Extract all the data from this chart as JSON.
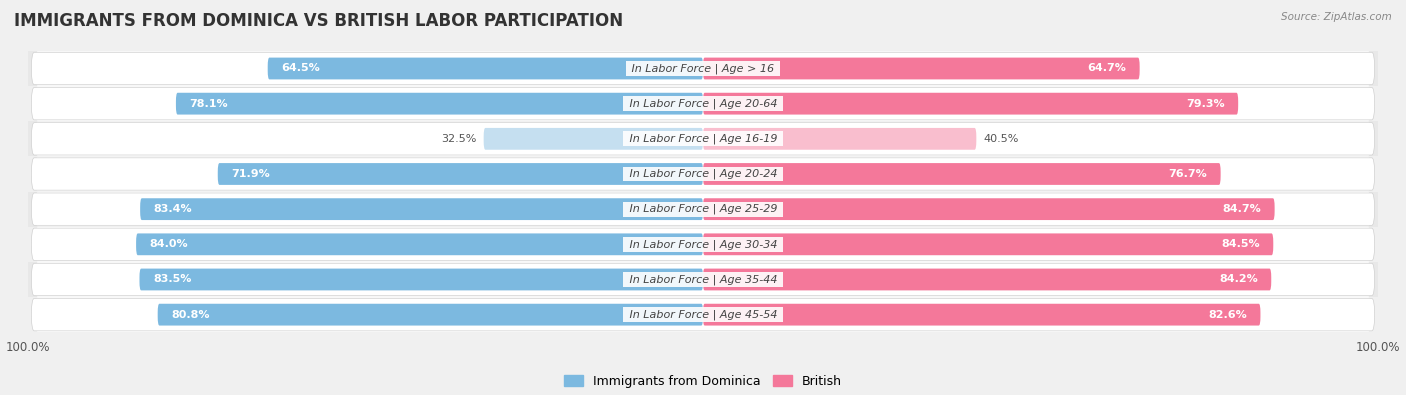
{
  "title": "IMMIGRANTS FROM DOMINICA VS BRITISH LABOR PARTICIPATION",
  "source": "Source: ZipAtlas.com",
  "categories": [
    "In Labor Force | Age > 16",
    "In Labor Force | Age 20-64",
    "In Labor Force | Age 16-19",
    "In Labor Force | Age 20-24",
    "In Labor Force | Age 25-29",
    "In Labor Force | Age 30-34",
    "In Labor Force | Age 35-44",
    "In Labor Force | Age 45-54"
  ],
  "dominica_values": [
    64.5,
    78.1,
    32.5,
    71.9,
    83.4,
    84.0,
    83.5,
    80.8
  ],
  "british_values": [
    64.7,
    79.3,
    40.5,
    76.7,
    84.7,
    84.5,
    84.2,
    82.6
  ],
  "dominica_color": "#7cb9e0",
  "dominica_light_color": "#c5dff0",
  "british_color": "#f4789a",
  "british_light_color": "#f9bece",
  "bar_height": 0.62,
  "max_value": 100.0,
  "bg_color": "#f0f0f0",
  "row_bg_dark": "#e8e8e8",
  "row_bg_light": "#f0f0f0",
  "title_fontsize": 12,
  "label_fontsize": 8,
  "value_fontsize": 8
}
